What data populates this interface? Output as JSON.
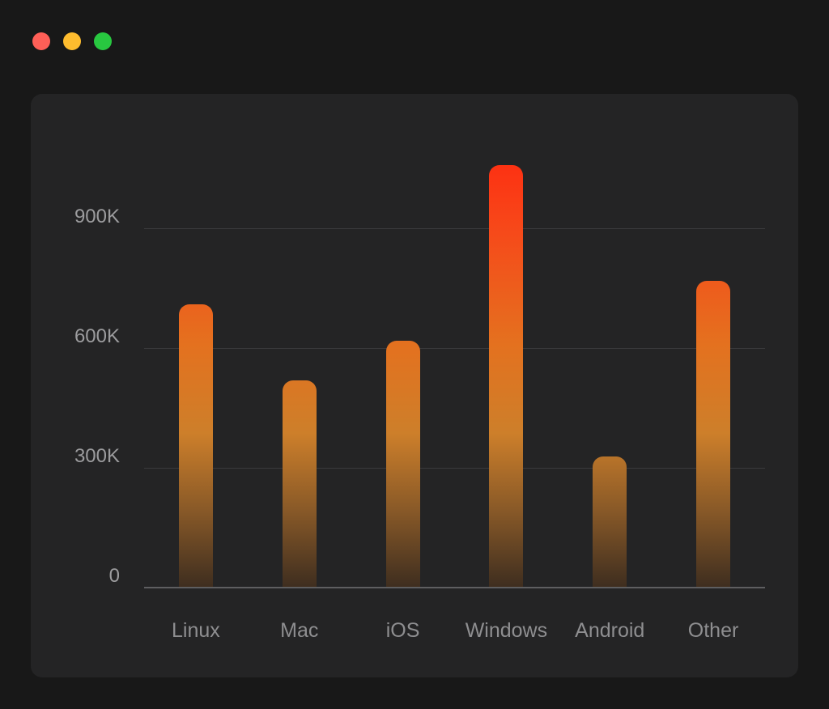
{
  "window": {
    "titlebar_buttons": [
      {
        "name": "close",
        "color": "#ff5f57"
      },
      {
        "name": "minimize",
        "color": "#febc2e"
      },
      {
        "name": "zoom",
        "color": "#28c840"
      }
    ]
  },
  "chart_data": {
    "type": "bar",
    "title": "",
    "categories": [
      "Linux",
      "Mac",
      "iOS",
      "Windows",
      "Android",
      "Other"
    ],
    "values": [
      710,
      520,
      620,
      1060,
      330,
      770
    ],
    "unit": "thousands",
    "y_tick_values": [
      0,
      300,
      600,
      900
    ],
    "y_tick_labels": [
      "0",
      "300K",
      "600K",
      "900K"
    ],
    "ylim": [
      0,
      1110
    ],
    "grid": "horizontal-lines",
    "legend": "none",
    "bar_gradient": [
      {
        "pos": "0%",
        "color": "#ff2a10"
      },
      {
        "pos": "20%",
        "color": "#f64a1a"
      },
      {
        "pos": "45%",
        "color": "#e4711f"
      },
      {
        "pos": "65%",
        "color": "#cd7f2a"
      },
      {
        "pos": "82%",
        "color": "#8a5a28"
      },
      {
        "pos": "100%",
        "color": "#3d2d1f"
      }
    ]
  }
}
